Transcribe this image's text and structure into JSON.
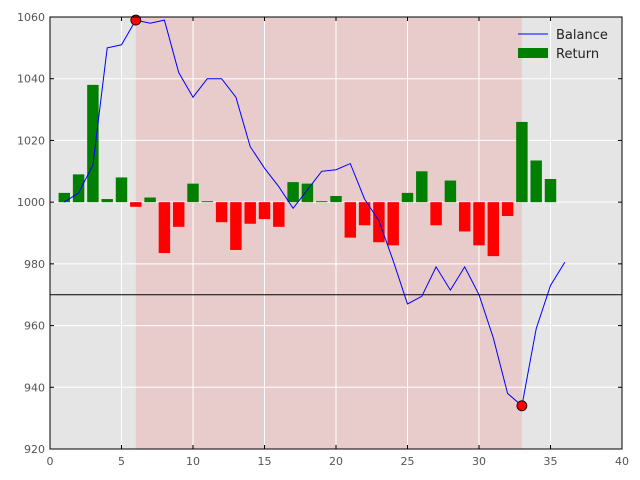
{
  "chart_data": {
    "type": "bar+line",
    "xlim": [
      0,
      40
    ],
    "ylim": [
      920,
      1060
    ],
    "x_ticks": [
      0,
      5,
      10,
      15,
      20,
      25,
      30,
      35,
      40
    ],
    "y_ticks": [
      920,
      940,
      960,
      980,
      1000,
      1020,
      1040,
      1060
    ],
    "grid": true,
    "legend_position": "top-right",
    "baseline": 1000,
    "reference_line": 970,
    "shaded_region": {
      "x_start": 6,
      "x_end": 33
    },
    "series": [
      {
        "name": "Balance",
        "type": "line",
        "color": "#0000ff",
        "x": [
          1,
          2,
          3,
          4,
          5,
          6,
          7,
          8,
          9,
          10,
          11,
          12,
          13,
          14,
          15,
          16,
          17,
          18,
          19,
          20,
          21,
          22,
          23,
          24,
          25,
          26,
          27,
          28,
          29,
          30,
          31,
          32,
          33,
          34,
          35,
          36
        ],
        "values": [
          1000,
          1003,
          1012,
          1050,
          1051,
          1059,
          1058,
          1059,
          1042,
          1034,
          1040,
          1040,
          1034,
          1018,
          1011,
          1005,
          998,
          1004,
          1010,
          1010.5,
          1012.5,
          1001,
          994,
          981,
          967,
          969.5,
          979,
          971.5,
          979,
          970,
          956,
          938,
          934,
          959,
          973,
          980.5
        ]
      },
      {
        "name": "Return",
        "type": "bar",
        "color_positive": "#007f00",
        "color_negative": "#ff0000",
        "x": [
          1,
          2,
          3,
          4,
          5,
          6,
          7,
          8,
          9,
          10,
          11,
          12,
          13,
          14,
          15,
          16,
          17,
          18,
          19,
          20,
          21,
          22,
          23,
          24,
          25,
          26,
          27,
          28,
          29,
          30,
          31,
          32,
          33,
          34,
          35,
          36
        ],
        "values": [
          3,
          9,
          38,
          1,
          8,
          -1.5,
          1.5,
          -16.5,
          -8,
          6,
          0.3,
          -6.5,
          -15.5,
          -7,
          -5.5,
          -8,
          6.5,
          6,
          0.3,
          2,
          -11.5,
          -7.5,
          -13,
          -14,
          3,
          10,
          -7.5,
          7,
          -9.5,
          -14,
          -17.5,
          -4.5,
          26,
          13.5,
          7.5,
          0
        ]
      }
    ],
    "markers": [
      {
        "x": 6,
        "y": 1059,
        "color": "#ff0000"
      },
      {
        "x": 33,
        "y": 934,
        "color": "#ff0000"
      }
    ],
    "colors": {
      "background": "#e5e5e5",
      "shade": "#e8cccc",
      "grid": "#ffffff",
      "reference_line": "#000000",
      "line": "#0000ff"
    }
  }
}
